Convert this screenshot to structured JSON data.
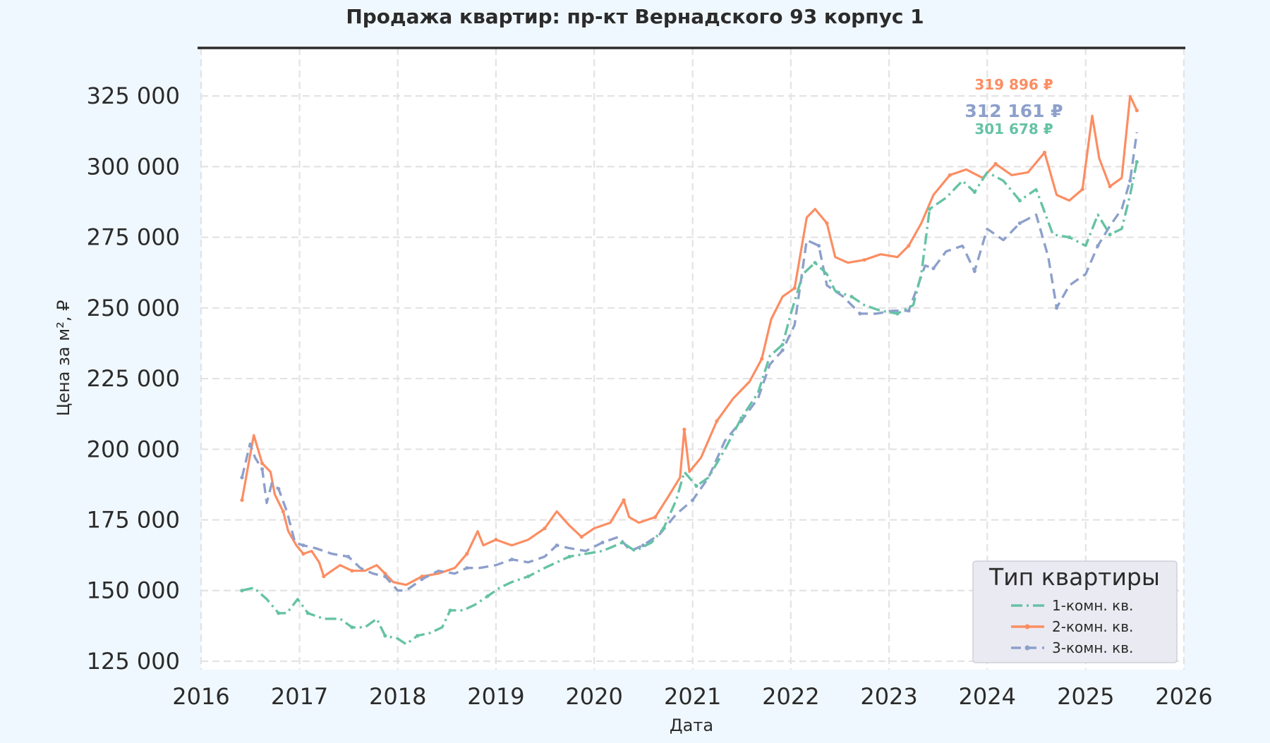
{
  "chart_data": {
    "type": "line",
    "title": "Продажа квартир: пр-кт Вернадского 93 корпус 1",
    "xlabel": "Дата",
    "ylabel": "Цена за м², ₽",
    "xlim": [
      "2016-01-01",
      "2026-01-01"
    ],
    "ylim": [
      122000,
      342000
    ],
    "x_ticks": [
      "2016",
      "2017",
      "2018",
      "2019",
      "2020",
      "2021",
      "2022",
      "2023",
      "2024",
      "2025",
      "2026"
    ],
    "y_ticks": [
      {
        "value": 125000,
        "label": "125 000"
      },
      {
        "value": 150000,
        "label": "150 000"
      },
      {
        "value": 175000,
        "label": "175 000"
      },
      {
        "value": 200000,
        "label": "200 000"
      },
      {
        "value": 225000,
        "label": "225 000"
      },
      {
        "value": 250000,
        "label": "250 000"
      },
      {
        "value": 275000,
        "label": "275 000"
      },
      {
        "value": 300000,
        "label": "300 000"
      },
      {
        "value": 325000,
        "label": "325 000"
      }
    ],
    "grid": true,
    "legend": {
      "title": "Тип квартиры",
      "placement": "bottom-right"
    },
    "series": [
      {
        "name": "1-комн. кв.",
        "color": "#66c2a5",
        "dash": "dash-dot",
        "end_label": "301 678 ₽",
        "points": [
          [
            "2016-06-01",
            150000
          ],
          [
            "2016-07-15",
            151000
          ],
          [
            "2016-09-01",
            147000
          ],
          [
            "2016-10-15",
            142000
          ],
          [
            "2016-11-15",
            142000
          ],
          [
            "2016-12-25",
            147000
          ],
          [
            "2017-02-01",
            142000
          ],
          [
            "2017-04-01",
            140000
          ],
          [
            "2017-06-01",
            140000
          ],
          [
            "2017-07-15",
            137000
          ],
          [
            "2017-09-01",
            137000
          ],
          [
            "2017-10-15",
            140000
          ],
          [
            "2017-11-15",
            134000
          ],
          [
            "2018-01-01",
            133000
          ],
          [
            "2018-02-01",
            131000
          ],
          [
            "2018-03-15",
            134000
          ],
          [
            "2018-05-01",
            135000
          ],
          [
            "2018-06-15",
            137000
          ],
          [
            "2018-07-15",
            143000
          ],
          [
            "2018-09-01",
            143000
          ],
          [
            "2018-10-15",
            145000
          ],
          [
            "2018-12-01",
            148000
          ],
          [
            "2019-01-15",
            151000
          ],
          [
            "2019-03-01",
            153000
          ],
          [
            "2019-05-01",
            155000
          ],
          [
            "2019-07-01",
            158000
          ],
          [
            "2019-08-15",
            160000
          ],
          [
            "2019-10-01",
            162000
          ],
          [
            "2019-12-01",
            163000
          ],
          [
            "2020-02-01",
            164000
          ],
          [
            "2020-04-15",
            167000
          ],
          [
            "2020-06-01",
            164000
          ],
          [
            "2020-08-01",
            167000
          ],
          [
            "2020-09-15",
            172000
          ],
          [
            "2020-11-01",
            182000
          ],
          [
            "2020-12-01",
            192000
          ],
          [
            "2021-01-15",
            187000
          ],
          [
            "2021-03-01",
            190000
          ],
          [
            "2021-05-01",
            200000
          ],
          [
            "2021-07-01",
            211000
          ],
          [
            "2021-09-01",
            220000
          ],
          [
            "2021-10-15",
            233000
          ],
          [
            "2021-12-01",
            237000
          ],
          [
            "2022-01-01",
            248000
          ],
          [
            "2022-02-15",
            262000
          ],
          [
            "2022-04-01",
            266000
          ],
          [
            "2022-05-15",
            262000
          ],
          [
            "2022-06-15",
            256000
          ],
          [
            "2022-08-15",
            254000
          ],
          [
            "2022-10-01",
            251000
          ],
          [
            "2022-12-01",
            249000
          ],
          [
            "2023-02-01",
            248000
          ],
          [
            "2023-04-01",
            251000
          ],
          [
            "2023-05-01",
            262000
          ],
          [
            "2023-06-01",
            285000
          ],
          [
            "2023-08-01",
            289000
          ],
          [
            "2023-10-01",
            295000
          ],
          [
            "2023-11-15",
            291000
          ],
          [
            "2024-01-01",
            298000
          ],
          [
            "2024-03-01",
            295000
          ],
          [
            "2024-05-01",
            288000
          ],
          [
            "2024-07-01",
            292000
          ],
          [
            "2024-09-01",
            276000
          ],
          [
            "2024-11-01",
            275000
          ],
          [
            "2025-01-01",
            272000
          ],
          [
            "2025-02-15",
            283000
          ],
          [
            "2025-04-01",
            276000
          ],
          [
            "2025-05-15",
            278000
          ],
          [
            "2025-06-15",
            290000
          ],
          [
            "2025-07-10",
            301678
          ]
        ]
      },
      {
        "name": "2-комн. кв.",
        "color": "#fc8d62",
        "dash": "solid",
        "end_label": "319 896 ₽",
        "points": [
          [
            "2016-06-01",
            182000
          ],
          [
            "2016-06-20",
            192000
          ],
          [
            "2016-07-15",
            205000
          ],
          [
            "2016-08-15",
            195000
          ],
          [
            "2016-09-15",
            192000
          ],
          [
            "2016-10-01",
            184000
          ],
          [
            "2016-11-01",
            178000
          ],
          [
            "2016-11-20",
            171000
          ],
          [
            "2016-12-20",
            166000
          ],
          [
            "2017-01-15",
            163000
          ],
          [
            "2017-02-15",
            164000
          ],
          [
            "2017-03-15",
            160000
          ],
          [
            "2017-04-01",
            155000
          ],
          [
            "2017-05-01",
            157000
          ],
          [
            "2017-06-01",
            159000
          ],
          [
            "2017-07-15",
            157000
          ],
          [
            "2017-09-01",
            157000
          ],
          [
            "2017-10-15",
            159000
          ],
          [
            "2017-11-15",
            156000
          ],
          [
            "2017-12-15",
            153000
          ],
          [
            "2018-02-01",
            152000
          ],
          [
            "2018-04-01",
            155000
          ],
          [
            "2018-06-01",
            156000
          ],
          [
            "2018-08-01",
            158000
          ],
          [
            "2018-09-15",
            163000
          ],
          [
            "2018-10-25",
            171000
          ],
          [
            "2018-11-15",
            166000
          ],
          [
            "2019-01-01",
            168000
          ],
          [
            "2019-03-01",
            166000
          ],
          [
            "2019-05-01",
            168000
          ],
          [
            "2019-07-01",
            172000
          ],
          [
            "2019-08-15",
            178000
          ],
          [
            "2019-10-01",
            173000
          ],
          [
            "2019-11-15",
            169000
          ],
          [
            "2020-01-01",
            172000
          ],
          [
            "2020-03-01",
            174000
          ],
          [
            "2020-04-20",
            182000
          ],
          [
            "2020-05-10",
            176000
          ],
          [
            "2020-06-15",
            174000
          ],
          [
            "2020-08-15",
            176000
          ],
          [
            "2020-10-01",
            183000
          ],
          [
            "2020-11-15",
            190000
          ],
          [
            "2020-12-01",
            207000
          ],
          [
            "2020-12-20",
            192000
          ],
          [
            "2021-02-01",
            197000
          ],
          [
            "2021-04-01",
            210000
          ],
          [
            "2021-06-01",
            218000
          ],
          [
            "2021-08-01",
            224000
          ],
          [
            "2021-09-15",
            232000
          ],
          [
            "2021-10-20",
            246000
          ],
          [
            "2021-12-01",
            254000
          ],
          [
            "2022-01-15",
            257000
          ],
          [
            "2022-03-01",
            282000
          ],
          [
            "2022-04-01",
            285000
          ],
          [
            "2022-05-15",
            280000
          ],
          [
            "2022-06-15",
            268000
          ],
          [
            "2022-08-01",
            266000
          ],
          [
            "2022-10-01",
            267000
          ],
          [
            "2022-12-01",
            269000
          ],
          [
            "2023-02-01",
            268000
          ],
          [
            "2023-03-15",
            272000
          ],
          [
            "2023-05-01",
            280000
          ],
          [
            "2023-06-15",
            290000
          ],
          [
            "2023-08-15",
            297000
          ],
          [
            "2023-10-15",
            299000
          ],
          [
            "2023-12-15",
            296000
          ],
          [
            "2024-02-01",
            301000
          ],
          [
            "2024-04-01",
            297000
          ],
          [
            "2024-06-01",
            298000
          ],
          [
            "2024-08-01",
            305000
          ],
          [
            "2024-09-15",
            290000
          ],
          [
            "2024-11-01",
            288000
          ],
          [
            "2024-12-20",
            292000
          ],
          [
            "2025-01-25",
            318000
          ],
          [
            "2025-02-20",
            303000
          ],
          [
            "2025-04-01",
            293000
          ],
          [
            "2025-05-15",
            296000
          ],
          [
            "2025-06-15",
            325000
          ],
          [
            "2025-07-10",
            319896
          ]
        ]
      },
      {
        "name": "3-комн. кв.",
        "color": "#8da0cb",
        "dash": "dashed",
        "end_label": "312 161 ₽",
        "points": [
          [
            "2016-06-01",
            190000
          ],
          [
            "2016-07-01",
            202000
          ],
          [
            "2016-07-20",
            197000
          ],
          [
            "2016-08-15",
            193000
          ],
          [
            "2016-09-01",
            181000
          ],
          [
            "2016-09-20",
            188000
          ],
          [
            "2016-10-15",
            186000
          ],
          [
            "2016-11-15",
            178000
          ],
          [
            "2016-12-15",
            167000
          ],
          [
            "2017-01-15",
            166000
          ],
          [
            "2017-03-01",
            165000
          ],
          [
            "2017-05-01",
            163000
          ],
          [
            "2017-07-01",
            162000
          ],
          [
            "2017-08-15",
            158000
          ],
          [
            "2017-10-01",
            156000
          ],
          [
            "2017-11-15",
            155000
          ],
          [
            "2018-01-01",
            150000
          ],
          [
            "2018-02-01",
            150000
          ],
          [
            "2018-04-01",
            154000
          ],
          [
            "2018-06-01",
            157000
          ],
          [
            "2018-08-01",
            156000
          ],
          [
            "2018-09-15",
            158000
          ],
          [
            "2018-11-01",
            158000
          ],
          [
            "2019-01-01",
            159000
          ],
          [
            "2019-03-01",
            161000
          ],
          [
            "2019-05-01",
            160000
          ],
          [
            "2019-07-01",
            162000
          ],
          [
            "2019-08-15",
            166000
          ],
          [
            "2019-10-01",
            165000
          ],
          [
            "2019-12-01",
            164000
          ],
          [
            "2020-02-01",
            167000
          ],
          [
            "2020-04-01",
            169000
          ],
          [
            "2020-05-15",
            164000
          ],
          [
            "2020-07-01",
            166000
          ],
          [
            "2020-09-01",
            170000
          ],
          [
            "2020-11-01",
            177000
          ],
          [
            "2021-01-01",
            182000
          ],
          [
            "2021-03-01",
            190000
          ],
          [
            "2021-05-01",
            203000
          ],
          [
            "2021-07-01",
            210000
          ],
          [
            "2021-09-01",
            218000
          ],
          [
            "2021-10-15",
            230000
          ],
          [
            "2021-12-01",
            235000
          ],
          [
            "2022-01-15",
            244000
          ],
          [
            "2022-03-01",
            274000
          ],
          [
            "2022-04-15",
            272000
          ],
          [
            "2022-05-15",
            258000
          ],
          [
            "2022-07-15",
            254000
          ],
          [
            "2022-09-15",
            248000
          ],
          [
            "2022-11-15",
            248000
          ],
          [
            "2023-01-15",
            249000
          ],
          [
            "2023-03-15",
            249000
          ],
          [
            "2023-04-15",
            257000
          ],
          [
            "2023-05-15",
            265000
          ],
          [
            "2023-06-15",
            264000
          ],
          [
            "2023-08-01",
            270000
          ],
          [
            "2023-10-01",
            272000
          ],
          [
            "2023-11-15",
            263000
          ],
          [
            "2024-01-01",
            278000
          ],
          [
            "2024-03-01",
            274000
          ],
          [
            "2024-05-01",
            280000
          ],
          [
            "2024-07-01",
            283000
          ],
          [
            "2024-08-15",
            268000
          ],
          [
            "2024-09-15",
            250000
          ],
          [
            "2024-11-01",
            258000
          ],
          [
            "2025-01-01",
            262000
          ],
          [
            "2025-02-15",
            272000
          ],
          [
            "2025-04-01",
            279000
          ],
          [
            "2025-05-15",
            285000
          ],
          [
            "2025-06-15",
            295000
          ],
          [
            "2025-07-10",
            312161
          ]
        ]
      }
    ]
  }
}
